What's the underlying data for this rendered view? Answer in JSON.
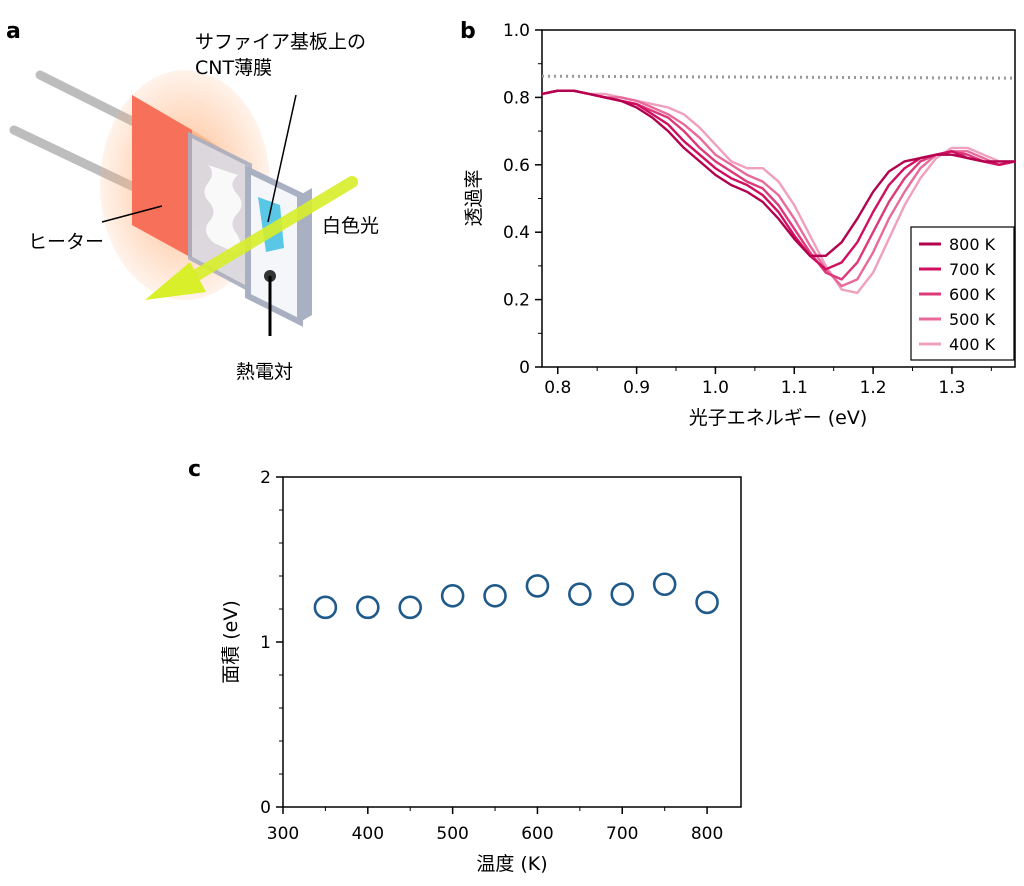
{
  "panel_a": {
    "letter": "a",
    "label_substrate_line1": "サファイア基板上の",
    "label_substrate_line2": "CNT薄膜",
    "label_heater": "ヒーター",
    "label_light": "白色光",
    "label_thermocouple": "熱電対"
  },
  "colors": {
    "heater": "#f7705a",
    "heater_glow": "#ffb07a",
    "film": "#5bc7e6",
    "light_arrow": "#d8ef2a",
    "frame": "#a9b0c2",
    "frame_fill": "#eef0f6",
    "reference_line": "#999999",
    "markers": "#1f5a8a"
  },
  "chart_data": [
    {
      "panel": "b",
      "type": "line",
      "title": "",
      "xlabel": "光子エネルギー (eV)",
      "ylabel": "透過率",
      "xlim": [
        0.78,
        1.38
      ],
      "ylim": [
        0,
        1.0
      ],
      "xticks": [
        "0.8",
        "0.9",
        "1.0",
        "1.1",
        "1.2",
        "1.3"
      ],
      "yticks": [
        "0",
        "0.2",
        "0.4",
        "0.6",
        "0.8",
        "1.0"
      ],
      "legend_position": "bottom-right",
      "reference_line": {
        "y": 0.86,
        "style": "dotted"
      },
      "x": [
        0.78,
        0.8,
        0.82,
        0.84,
        0.86,
        0.88,
        0.9,
        0.92,
        0.94,
        0.96,
        0.98,
        1.0,
        1.02,
        1.04,
        1.06,
        1.08,
        1.1,
        1.12,
        1.14,
        1.16,
        1.18,
        1.2,
        1.22,
        1.24,
        1.26,
        1.28,
        1.3,
        1.32,
        1.34,
        1.36,
        1.38
      ],
      "series": [
        {
          "name": "800 K",
          "color": "#b3004f",
          "values": [
            0.81,
            0.82,
            0.82,
            0.81,
            0.8,
            0.79,
            0.77,
            0.74,
            0.7,
            0.65,
            0.61,
            0.57,
            0.54,
            0.52,
            0.49,
            0.44,
            0.38,
            0.33,
            0.33,
            0.37,
            0.44,
            0.52,
            0.58,
            0.61,
            0.62,
            0.63,
            0.63,
            0.62,
            0.61,
            0.61,
            0.61
          ]
        },
        {
          "name": "700 K",
          "color": "#d10f61",
          "values": [
            0.81,
            0.82,
            0.82,
            0.81,
            0.8,
            0.79,
            0.78,
            0.75,
            0.72,
            0.67,
            0.63,
            0.59,
            0.56,
            0.54,
            0.51,
            0.46,
            0.39,
            0.33,
            0.29,
            0.31,
            0.37,
            0.46,
            0.54,
            0.59,
            0.62,
            0.63,
            0.64,
            0.62,
            0.61,
            0.6,
            0.61
          ]
        },
        {
          "name": "600 K",
          "color": "#dc3a7a",
          "values": [
            0.81,
            0.82,
            0.82,
            0.81,
            0.8,
            0.79,
            0.78,
            0.76,
            0.74,
            0.7,
            0.65,
            0.61,
            0.58,
            0.55,
            0.53,
            0.48,
            0.41,
            0.34,
            0.28,
            0.26,
            0.31,
            0.4,
            0.49,
            0.56,
            0.61,
            0.63,
            0.64,
            0.63,
            0.61,
            0.6,
            0.61
          ]
        },
        {
          "name": "500 K",
          "color": "#e86a9a",
          "values": [
            0.81,
            0.82,
            0.82,
            0.81,
            0.8,
            0.8,
            0.79,
            0.77,
            0.75,
            0.72,
            0.68,
            0.63,
            0.6,
            0.57,
            0.55,
            0.51,
            0.44,
            0.36,
            0.29,
            0.24,
            0.26,
            0.34,
            0.44,
            0.52,
            0.59,
            0.63,
            0.64,
            0.64,
            0.62,
            0.6,
            0.61
          ]
        },
        {
          "name": "400 K",
          "color": "#f09fbd",
          "values": [
            0.81,
            0.82,
            0.82,
            0.81,
            0.81,
            0.8,
            0.79,
            0.78,
            0.77,
            0.75,
            0.71,
            0.66,
            0.61,
            0.59,
            0.59,
            0.55,
            0.48,
            0.39,
            0.3,
            0.23,
            0.22,
            0.28,
            0.38,
            0.48,
            0.56,
            0.62,
            0.65,
            0.65,
            0.63,
            0.61,
            0.61
          ]
        }
      ]
    },
    {
      "panel": "c",
      "type": "scatter",
      "title": "",
      "xlabel": "温度 (K)",
      "ylabel": "面積 (eV)",
      "xlim": [
        300,
        840
      ],
      "ylim": [
        0,
        2
      ],
      "xticks": [
        "300",
        "400",
        "500",
        "600",
        "700",
        "800"
      ],
      "yticks": [
        "0",
        "1",
        "2"
      ],
      "marker": "open-circle",
      "x": [
        350,
        400,
        450,
        500,
        550,
        600,
        650,
        700,
        750,
        800
      ],
      "y": [
        1.21,
        1.21,
        1.21,
        1.28,
        1.28,
        1.34,
        1.29,
        1.29,
        1.35,
        1.24
      ]
    }
  ]
}
